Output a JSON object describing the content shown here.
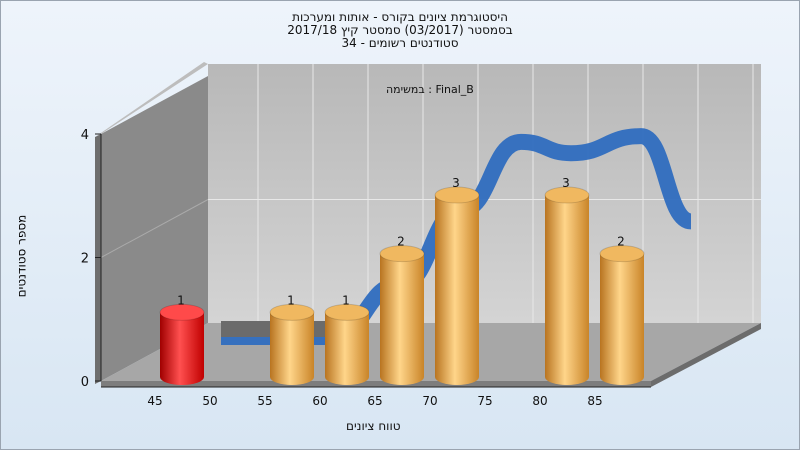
{
  "chart_data": {
    "type": "bar",
    "title": [
      "היסטוגרמת ציונים בקורס - אותות ומערכות",
      "בסמסטר  (03/2017)  סמסטר קיץ 2017/18",
      "סטודנטים רשומים - 34"
    ],
    "annotation": "במשימה : Final_B",
    "xlabel": "טווח ציונים",
    "ylabel": "מספר סטודנטים",
    "categories": [
      "45",
      "50",
      "55",
      "60",
      "65",
      "70",
      "75",
      "80",
      "85"
    ],
    "values": [
      1,
      0,
      1,
      1,
      2,
      3,
      0,
      3,
      2
    ],
    "data_labels": [
      "1",
      "",
      "1",
      "1",
      "2",
      "3",
      "",
      "3",
      "2"
    ],
    "bar_colors": [
      "#e01010",
      "#e8a040",
      "#e8a040",
      "#e8a040",
      "#e8a040",
      "#e8a040",
      "#e8a040",
      "#e8a040",
      "#e8a040"
    ],
    "trend_line_color": "#2f6dbf",
    "y_ticks": [
      "0",
      "2",
      "4"
    ],
    "ylim": [
      0,
      4
    ],
    "grid": true
  }
}
